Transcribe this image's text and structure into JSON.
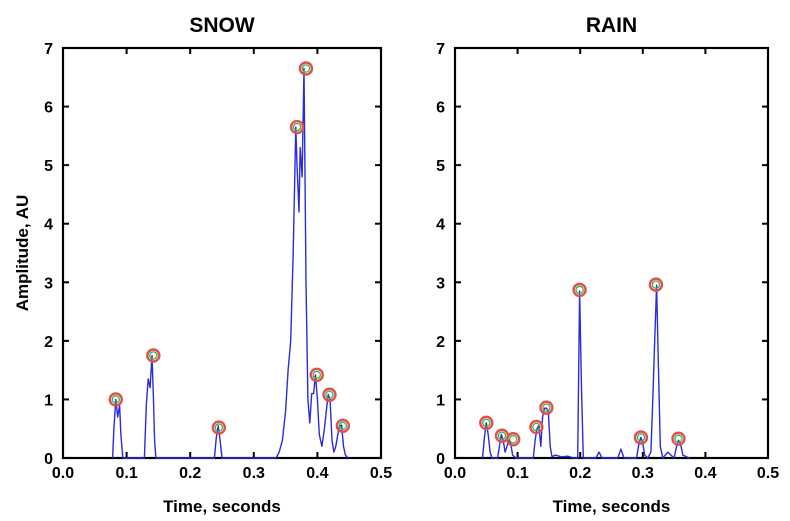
{
  "chart_data": [
    {
      "type": "line",
      "title": "SNOW",
      "xlabel": "Time, seconds",
      "ylabel": "Amplitude, AU",
      "xlim": [
        0.0,
        0.5
      ],
      "ylim": [
        0,
        7
      ],
      "xticks": [
        "0.0",
        "0.1",
        "0.2",
        "0.3",
        "0.4",
        "0.5"
      ],
      "yticks": [
        "0",
        "1",
        "2",
        "3",
        "4",
        "5",
        "6",
        "7"
      ],
      "grid": false,
      "series": [
        {
          "x": [
            0.078,
            0.08,
            0.083,
            0.086,
            0.089,
            0.091,
            0.094,
            0.128,
            0.131,
            0.134,
            0.137,
            0.14,
            0.142,
            0.144,
            0.146,
            0.238,
            0.241,
            0.244,
            0.247,
            0.25,
            0.335,
            0.34,
            0.345,
            0.35,
            0.354,
            0.358,
            0.362,
            0.366,
            0.368,
            0.371,
            0.373,
            0.376,
            0.379,
            0.382,
            0.385,
            0.388,
            0.391,
            0.394,
            0.397,
            0.4,
            0.403,
            0.407,
            0.411,
            0.414,
            0.417,
            0.42,
            0.423,
            0.426,
            0.429,
            0.432,
            0.435,
            0.438,
            0.441,
            0.444,
            0.448
          ],
          "y": [
            0,
            0.5,
            1.0,
            0.7,
            0.9,
            0.4,
            0,
            0,
            0.9,
            1.35,
            1.2,
            1.75,
            1.1,
            0.3,
            0,
            0,
            0.35,
            0.55,
            0.3,
            0,
            0,
            0.1,
            0.3,
            0.8,
            1.5,
            2.0,
            3.5,
            5.65,
            5.0,
            4.2,
            5.3,
            4.8,
            6.65,
            3.0,
            1.0,
            0.6,
            1.1,
            1.1,
            1.42,
            1.0,
            0.4,
            0.2,
            0.5,
            0.8,
            1.08,
            1.0,
            0.3,
            0.1,
            0.2,
            0.4,
            0.55,
            0.56,
            0.2,
            0.05,
            0
          ]
        }
      ],
      "peaks": {
        "x": [
          0.083,
          0.142,
          0.245,
          0.368,
          0.382,
          0.399,
          0.419,
          0.44
        ],
        "y": [
          1.0,
          1.75,
          0.52,
          5.65,
          6.65,
          1.42,
          1.08,
          0.55
        ]
      }
    },
    {
      "type": "line",
      "title": "RAIN",
      "xlabel": "Time, seconds",
      "ylabel": "",
      "xlim": [
        0.0,
        0.5
      ],
      "ylim": [
        0,
        7
      ],
      "xticks": [
        "0.0",
        "0.1",
        "0.2",
        "0.3",
        "0.4",
        "0.5"
      ],
      "yticks": [
        "0",
        "1",
        "2",
        "3",
        "4",
        "5",
        "6",
        "7"
      ],
      "grid": false,
      "series": [
        {
          "x": [
            0.044,
            0.047,
            0.05,
            0.053,
            0.056,
            0.059,
            0.068,
            0.071,
            0.074,
            0.077,
            0.08,
            0.083,
            0.086,
            0.089,
            0.092,
            0.095,
            0.098,
            0.125,
            0.128,
            0.131,
            0.134,
            0.137,
            0.14,
            0.143,
            0.146,
            0.149,
            0.152,
            0.155,
            0.16,
            0.17,
            0.18,
            0.19,
            0.196,
            0.199,
            0.202,
            0.205,
            0.225,
            0.23,
            0.235,
            0.26,
            0.265,
            0.27,
            0.29,
            0.294,
            0.297,
            0.3,
            0.303,
            0.308,
            0.313,
            0.316,
            0.319,
            0.322,
            0.325,
            0.328,
            0.332,
            0.34,
            0.345,
            0.35,
            0.354,
            0.357,
            0.36,
            0.364,
            0.37,
            0.375
          ],
          "y": [
            0,
            0.35,
            0.6,
            0.4,
            0.1,
            0,
            0,
            0.2,
            0.4,
            0.3,
            0.1,
            0.2,
            0.3,
            0.25,
            0.05,
            0.02,
            0,
            0,
            0.3,
            0.5,
            0.55,
            0.2,
            0.7,
            0.85,
            0.85,
            0.8,
            0.2,
            0.02,
            0.05,
            0.02,
            0.03,
            0,
            0,
            2.85,
            1.2,
            0,
            0,
            0.1,
            0,
            0,
            0.15,
            0,
            0,
            0.25,
            0.35,
            0.25,
            0.05,
            0,
            0.1,
            1.0,
            2.0,
            2.95,
            1.5,
            0.2,
            0,
            0.1,
            0.05,
            0,
            0.2,
            0.3,
            0.25,
            0.05,
            0.02,
            0
          ]
        }
      ],
      "peaks": {
        "x": [
          0.05,
          0.075,
          0.093,
          0.13,
          0.146,
          0.199,
          0.297,
          0.321,
          0.357
        ],
        "y": [
          0.6,
          0.38,
          0.32,
          0.53,
          0.86,
          2.87,
          0.35,
          2.96,
          0.33
        ]
      }
    }
  ]
}
